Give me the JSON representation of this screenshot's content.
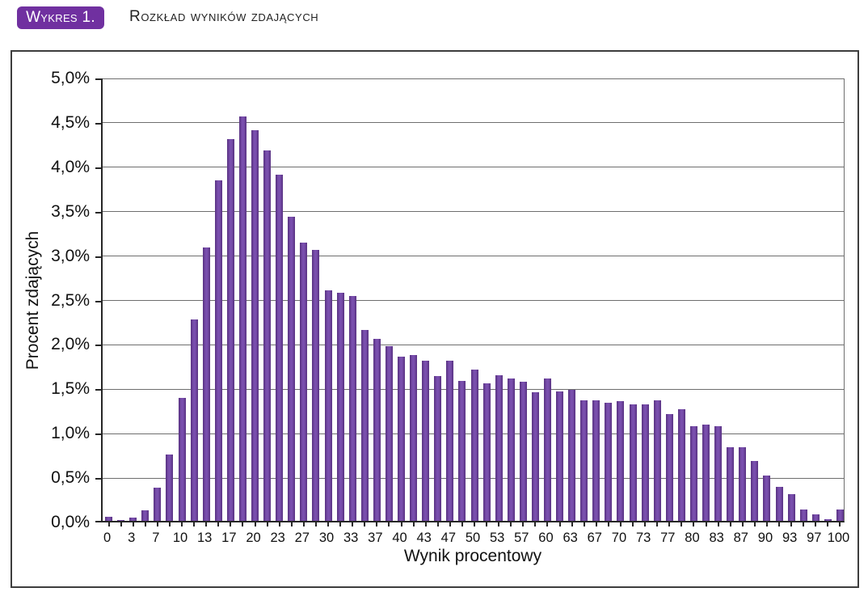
{
  "header": {
    "badge": "Wykres 1.",
    "title": "Rozkład wyników zdających"
  },
  "colors": {
    "badge_background": "#7030a0",
    "bar_fill": "#6a3d9a",
    "bar_edge": "#583181",
    "gridline": "#6e6e6e",
    "axis": "#262626",
    "frame_border": "#3d3d3d",
    "text": "#111111"
  },
  "chart_data": {
    "type": "bar",
    "title": "Rozkład wyników zdających",
    "xlabel": "Wynik procentowy",
    "ylabel": "Procent zdających",
    "ylim": [
      0,
      5
    ],
    "grid": true,
    "legend": "none",
    "yticks": [
      0,
      0.5,
      1,
      1.5,
      2,
      2.5,
      3,
      3.5,
      4,
      4.5,
      5
    ],
    "ytick_labels": [
      "0,0%",
      "0,5%",
      "1,0%",
      "1,5%",
      "2,0%",
      "2,5%",
      "3,0%",
      "3,5%",
      "4,0%",
      "4,5%",
      "5,0%"
    ],
    "categories": [
      "0",
      "",
      "3",
      "",
      "7",
      "",
      "10",
      "",
      "13",
      "",
      "17",
      "",
      "20",
      "",
      "23",
      "",
      "27",
      "",
      "30",
      "",
      "33",
      "",
      "37",
      "",
      "40",
      "",
      "43",
      "",
      "47",
      "",
      "50",
      "",
      "53",
      "",
      "57",
      "",
      "60",
      "",
      "63",
      "",
      "67",
      "",
      "70",
      "",
      "73",
      "",
      "77",
      "",
      "80",
      "",
      "83",
      "",
      "87",
      "",
      "90",
      "",
      "93",
      "",
      "97",
      "",
      "100"
    ],
    "values": [
      0.05,
      0.01,
      0.04,
      0.12,
      0.37,
      0.75,
      1.38,
      2.27,
      3.08,
      3.83,
      4.3,
      4.55,
      4.4,
      4.17,
      3.9,
      3.42,
      3.13,
      3.05,
      2.6,
      2.57,
      2.53,
      2.15,
      2.05,
      1.97,
      1.85,
      1.87,
      1.8,
      1.63,
      1.8,
      1.58,
      1.7,
      1.55,
      1.64,
      1.6,
      1.57,
      1.45,
      1.6,
      1.46,
      1.48,
      1.36,
      1.36,
      1.33,
      1.35,
      1.31,
      1.31,
      1.36,
      1.2,
      1.26,
      1.07,
      1.08,
      1.07,
      0.83,
      0.83,
      0.67,
      0.51,
      0.38,
      0.3,
      0.13,
      0.07,
      0.02,
      0.13
    ]
  }
}
